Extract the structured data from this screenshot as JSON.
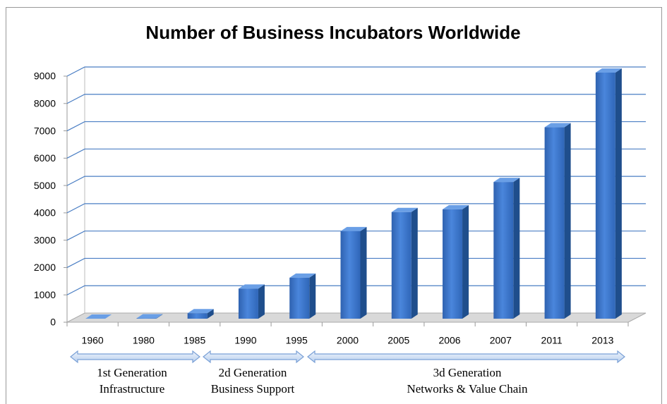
{
  "chart_data": {
    "type": "bar3d",
    "title": "Number of Business Incubators Worldwide",
    "categories": [
      "1960",
      "1980",
      "1985",
      "1990",
      "1995",
      "2000",
      "2005",
      "2006",
      "2007",
      "2011",
      "2013"
    ],
    "values": [
      1,
      12,
      200,
      1100,
      1500,
      3200,
      3900,
      4000,
      5000,
      7000,
      9000
    ],
    "color": "#3b78d0",
    "ylim": [
      0,
      9000
    ],
    "yticks": [
      0,
      1000,
      2000,
      3000,
      4000,
      5000,
      6000,
      7000,
      8000,
      9000
    ],
    "grid": true,
    "annotations": [
      [
        "1st Generation",
        "Infrastructure"
      ],
      [
        "2d Generation",
        "Business Support"
      ],
      [
        "3d Generation",
        "Networks & Value Chain"
      ]
    ]
  }
}
